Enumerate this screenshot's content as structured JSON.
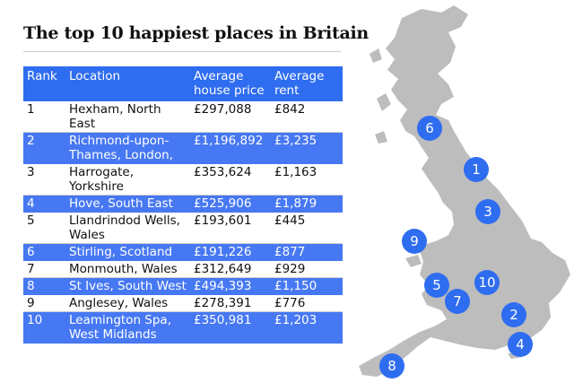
{
  "title": "The top 10 happiest places in Britain",
  "colors": {
    "header": "#2f6df0",
    "row_alt": "#4778f3",
    "map_land": "#bdbdbd",
    "marker": "#2f6df0"
  },
  "chart_data": {
    "type": "table",
    "title": "The top 10 happiest places in Britain",
    "columns": [
      "Rank",
      "Location",
      "Average house price",
      "Average rent"
    ],
    "rows": [
      {
        "rank": "1",
        "location": "Hexham, North East",
        "price": "£297,088",
        "rent": "£842"
      },
      {
        "rank": "2",
        "location": "Richmond-upon-Thames, London,",
        "price": "£1,196,892",
        "rent": "£3,235"
      },
      {
        "rank": "3",
        "location": "Harrogate, Yorkshire",
        "price": "£353,624",
        "rent": "£1,163"
      },
      {
        "rank": "4",
        "location": "Hove, South East",
        "price": "£525,906",
        "rent": "£1,879"
      },
      {
        "rank": "5",
        "location": "Llandrindod Wells, Wales",
        "price": "£193,601",
        "rent": "£445"
      },
      {
        "rank": "6",
        "location": "Stirling, Scotland",
        "price": "£191,226",
        "rent": "£877"
      },
      {
        "rank": "7",
        "location": "Monmouth, Wales",
        "price": "£312,649",
        "rent": "£929"
      },
      {
        "rank": "8",
        "location": "St Ives, South West",
        "price": "£494,393",
        "rent": "£1,150"
      },
      {
        "rank": "9",
        "location": "Anglesey, Wales",
        "price": "£278,391",
        "rent": "£776"
      },
      {
        "rank": "10",
        "location": "Leamington Spa, West Midlands",
        "price": "£350,981",
        "rent": "£1,203"
      }
    ],
    "map_markers": [
      "6",
      "1",
      "3",
      "9",
      "5",
      "10",
      "7",
      "2",
      "4",
      "8"
    ]
  }
}
